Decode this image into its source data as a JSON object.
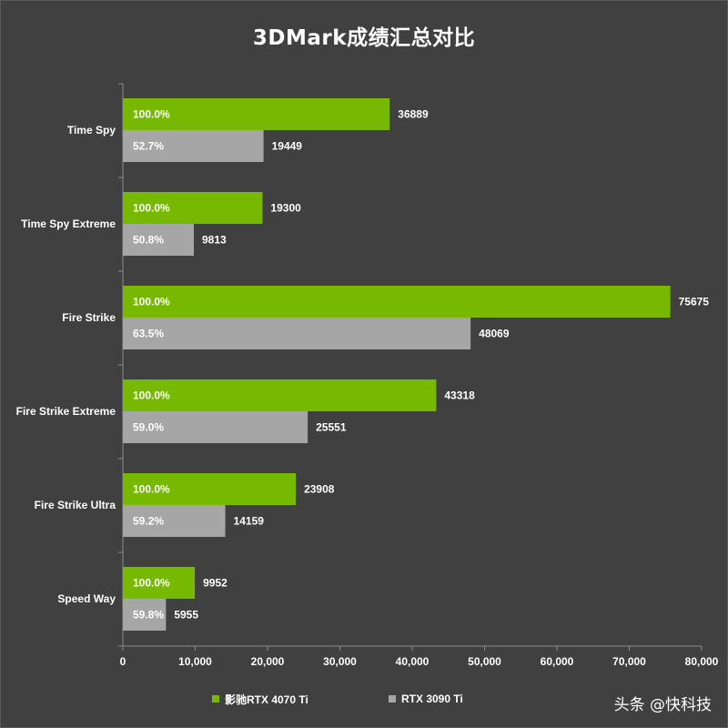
{
  "chart_data": {
    "type": "bar",
    "orientation": "horizontal",
    "title": "3DMark成绩汇总对比",
    "categories": [
      "Time Spy",
      "Time Spy Extreme",
      "Fire Strike",
      "Fire Strike Extreme",
      "Fire Strike Ultra",
      "Speed Way"
    ],
    "series": [
      {
        "name": "影驰RTX 4070 Ti",
        "color": "#76b900",
        "values": [
          36889,
          19300,
          75675,
          43318,
          23908,
          9952
        ],
        "percent_labels": [
          "100.0%",
          "100.0%",
          "100.0%",
          "100.0%",
          "100.0%",
          "100.0%"
        ]
      },
      {
        "name": "RTX 3090 Ti",
        "color": "#a6a6a6",
        "values": [
          19449,
          9813,
          48069,
          25551,
          14159,
          5955
        ],
        "percent_labels": [
          "52.7%",
          "50.8%",
          "63.5%",
          "59.0%",
          "59.2%",
          "59.8%"
        ]
      }
    ],
    "xlim": [
      0,
      80000
    ],
    "xticks": [
      0,
      10000,
      20000,
      30000,
      40000,
      50000,
      60000,
      70000,
      80000
    ],
    "xtick_labels": [
      "0",
      "10,000",
      "20,000",
      "30,000",
      "40,000",
      "50,000",
      "60,000",
      "70,000",
      "80,000"
    ],
    "value_labels_formatted": [
      [
        "36889",
        "19300",
        "75675",
        "43318",
        "23908",
        "9952"
      ],
      [
        "19449",
        "9813",
        "48069",
        "25551",
        "14159",
        "5955"
      ]
    ],
    "grid": false,
    "legend_position": "bottom",
    "background_color": "#404040",
    "text_color": "#ffffff"
  },
  "watermark": "头条 @快科技"
}
